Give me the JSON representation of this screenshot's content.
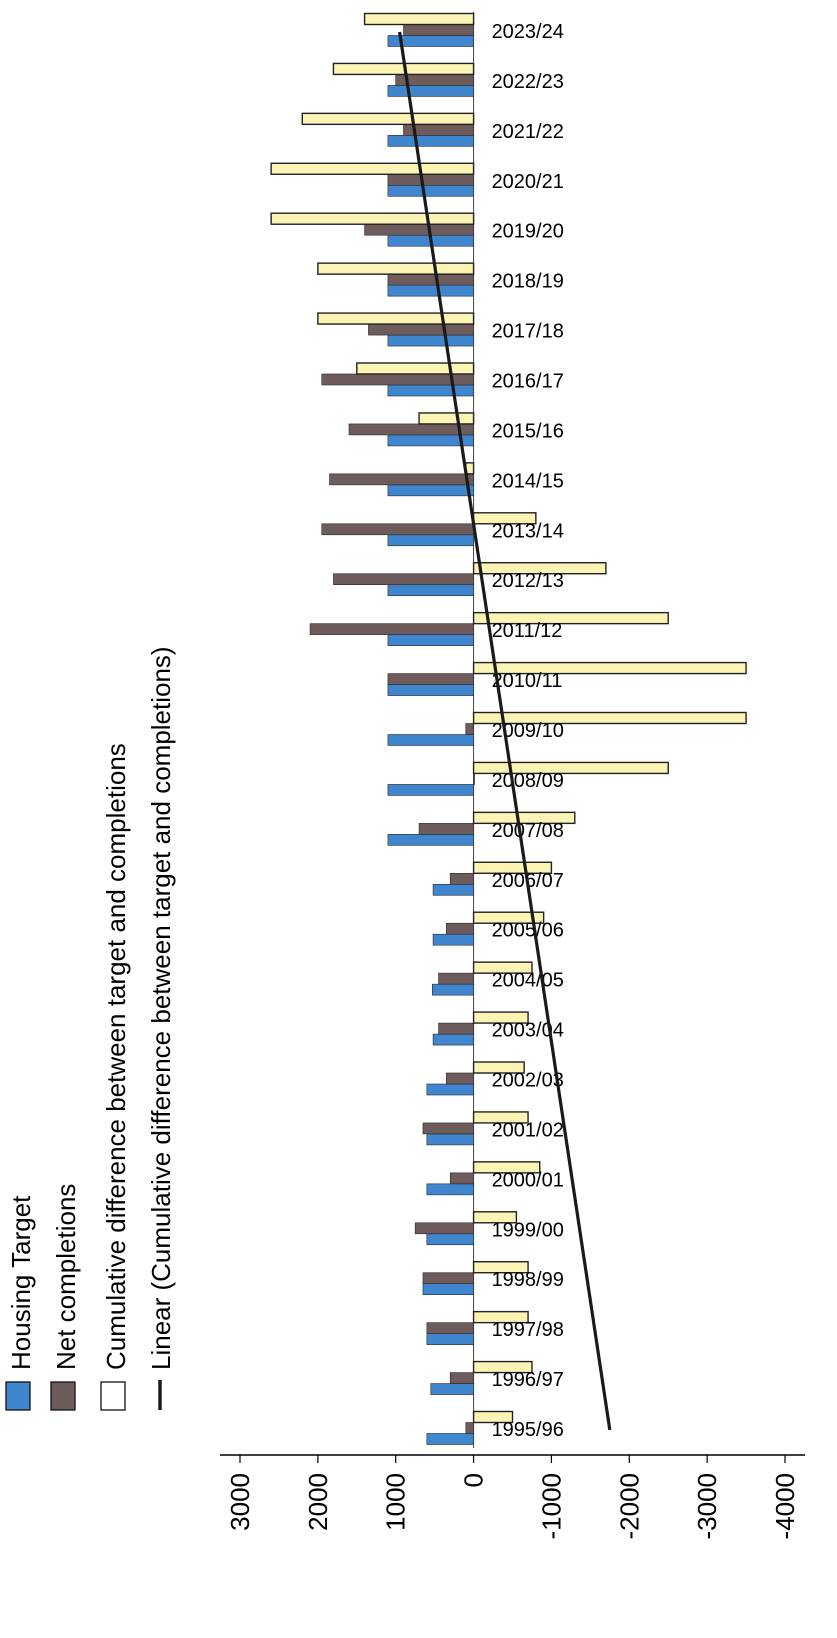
{
  "chart_data": {
    "type": "bar",
    "orientation": "rotated-horizontal",
    "value_axis": {
      "ticks": [
        3000,
        2000,
        1000,
        0,
        -1000,
        -2000,
        -3000,
        -4000
      ],
      "tick_labels": [
        "3000",
        "2000",
        "1000",
        "0",
        "-1000",
        "-2000",
        "-3000",
        "-4000"
      ],
      "range": [
        3000,
        -4000
      ]
    },
    "categories": [
      "1995/96",
      "1996/97",
      "1997/98",
      "1998/99",
      "1999/00",
      "2000/01",
      "2001/02",
      "2002/03",
      "2003/04",
      "2004/05",
      "2005/06",
      "2006/07",
      "2007/08",
      "2008/09",
      "2009/10",
      "2010/11",
      "2011/12",
      "2012/13",
      "2013/14",
      "2014/15",
      "2015/16",
      "2016/17",
      "2017/18",
      "2018/19",
      "2019/20",
      "2020/21",
      "2021/22",
      "2022/23",
      "2023/24"
    ],
    "series": [
      {
        "name": "Housing Target",
        "color": "#3f86cf",
        "values": [
          600,
          550,
          600,
          650,
          600,
          600,
          600,
          600,
          520,
          530,
          520,
          520,
          1100,
          1100,
          1100,
          1100,
          1100,
          1100,
          1100,
          1100,
          1100,
          1100,
          1100,
          1100,
          1100,
          1100,
          1100,
          1100,
          1100
        ]
      },
      {
        "name": "Net completions",
        "color": "#6e5b5c",
        "values": [
          100,
          300,
          600,
          650,
          750,
          300,
          650,
          350,
          450,
          450,
          350,
          300,
          700,
          0,
          100,
          1100,
          2100,
          1800,
          1950,
          1850,
          1600,
          1950,
          1350,
          1100,
          1400,
          1100,
          900,
          1000,
          900
        ]
      },
      {
        "name": "Cumulative difference between target and completions",
        "color": "#fbf4b4",
        "values": [
          -500,
          -750,
          -700,
          -700,
          -550,
          -850,
          -700,
          -650,
          -700,
          -750,
          -900,
          -1000,
          -1300,
          -2500,
          -3500,
          -3500,
          -2500,
          -1700,
          -800,
          100,
          700,
          1500,
          2000,
          2000,
          2600,
          2600,
          2200,
          1800,
          1400
        ]
      },
      {
        "name": "Linear (Cumulative difference between target and completions)",
        "color": "#1a1a1a",
        "type": "line",
        "endpoints": [
          -1750,
          950
        ]
      }
    ],
    "legend": {
      "placement": "left",
      "entries": [
        "Housing Target",
        "Net completions",
        "Cumulative difference between target and completions",
        "Linear (Cumulative difference between target and completions)"
      ]
    },
    "grid": false
  }
}
